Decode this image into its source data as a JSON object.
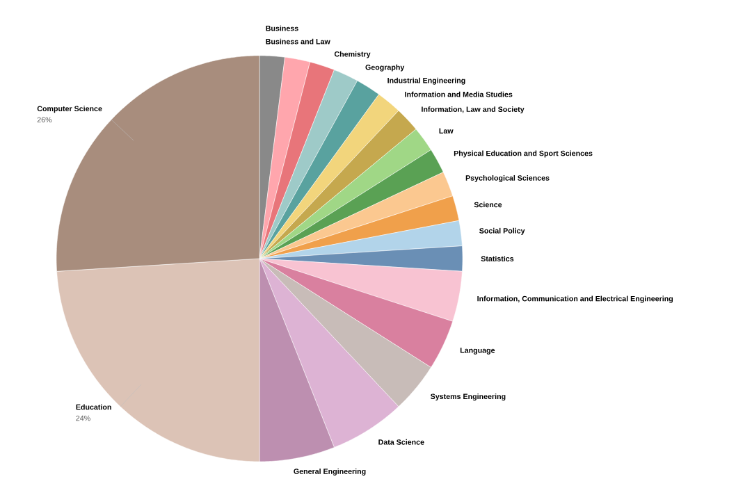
{
  "chart_data": {
    "type": "pie",
    "categories": [
      "Business",
      "Business and Law",
      "Chemistry",
      "Geography",
      "Industrial Engineering",
      "Information and Media Studies",
      "Information, Law and Society",
      "Law",
      "Physical Education and Sport Sciences",
      "Psychological Sciences",
      "Science",
      "Social Policy",
      "Statistics",
      "Information, Communication and Electrical Engineering",
      "Language",
      "Systems Engineering",
      "Data Science",
      "General Engineering",
      "Education",
      "Computer Science"
    ],
    "values": [
      2,
      2,
      2,
      2,
      2,
      2,
      2,
      2,
      2,
      2,
      2,
      2,
      2,
      4,
      4,
      4,
      6,
      6,
      24,
      26
    ],
    "colors": [
      "#898989",
      "#ffa6ad",
      "#e8757a",
      "#9ecac8",
      "#59a29f",
      "#f2d57c",
      "#c5a84e",
      "#a0d786",
      "#5aa154",
      "#fbc890",
      "#f0a04b",
      "#b2d4ea",
      "#6a8fb5",
      "#f8c3d2",
      "#d9809f",
      "#c8bcb8",
      "#ddb3d4",
      "#bd8fb0",
      "#dcc3b6",
      "#a88d7d"
    ],
    "value_labels": [
      null,
      null,
      null,
      null,
      null,
      null,
      null,
      null,
      null,
      null,
      null,
      null,
      null,
      null,
      null,
      null,
      null,
      null,
      "24%",
      "26%"
    ]
  }
}
